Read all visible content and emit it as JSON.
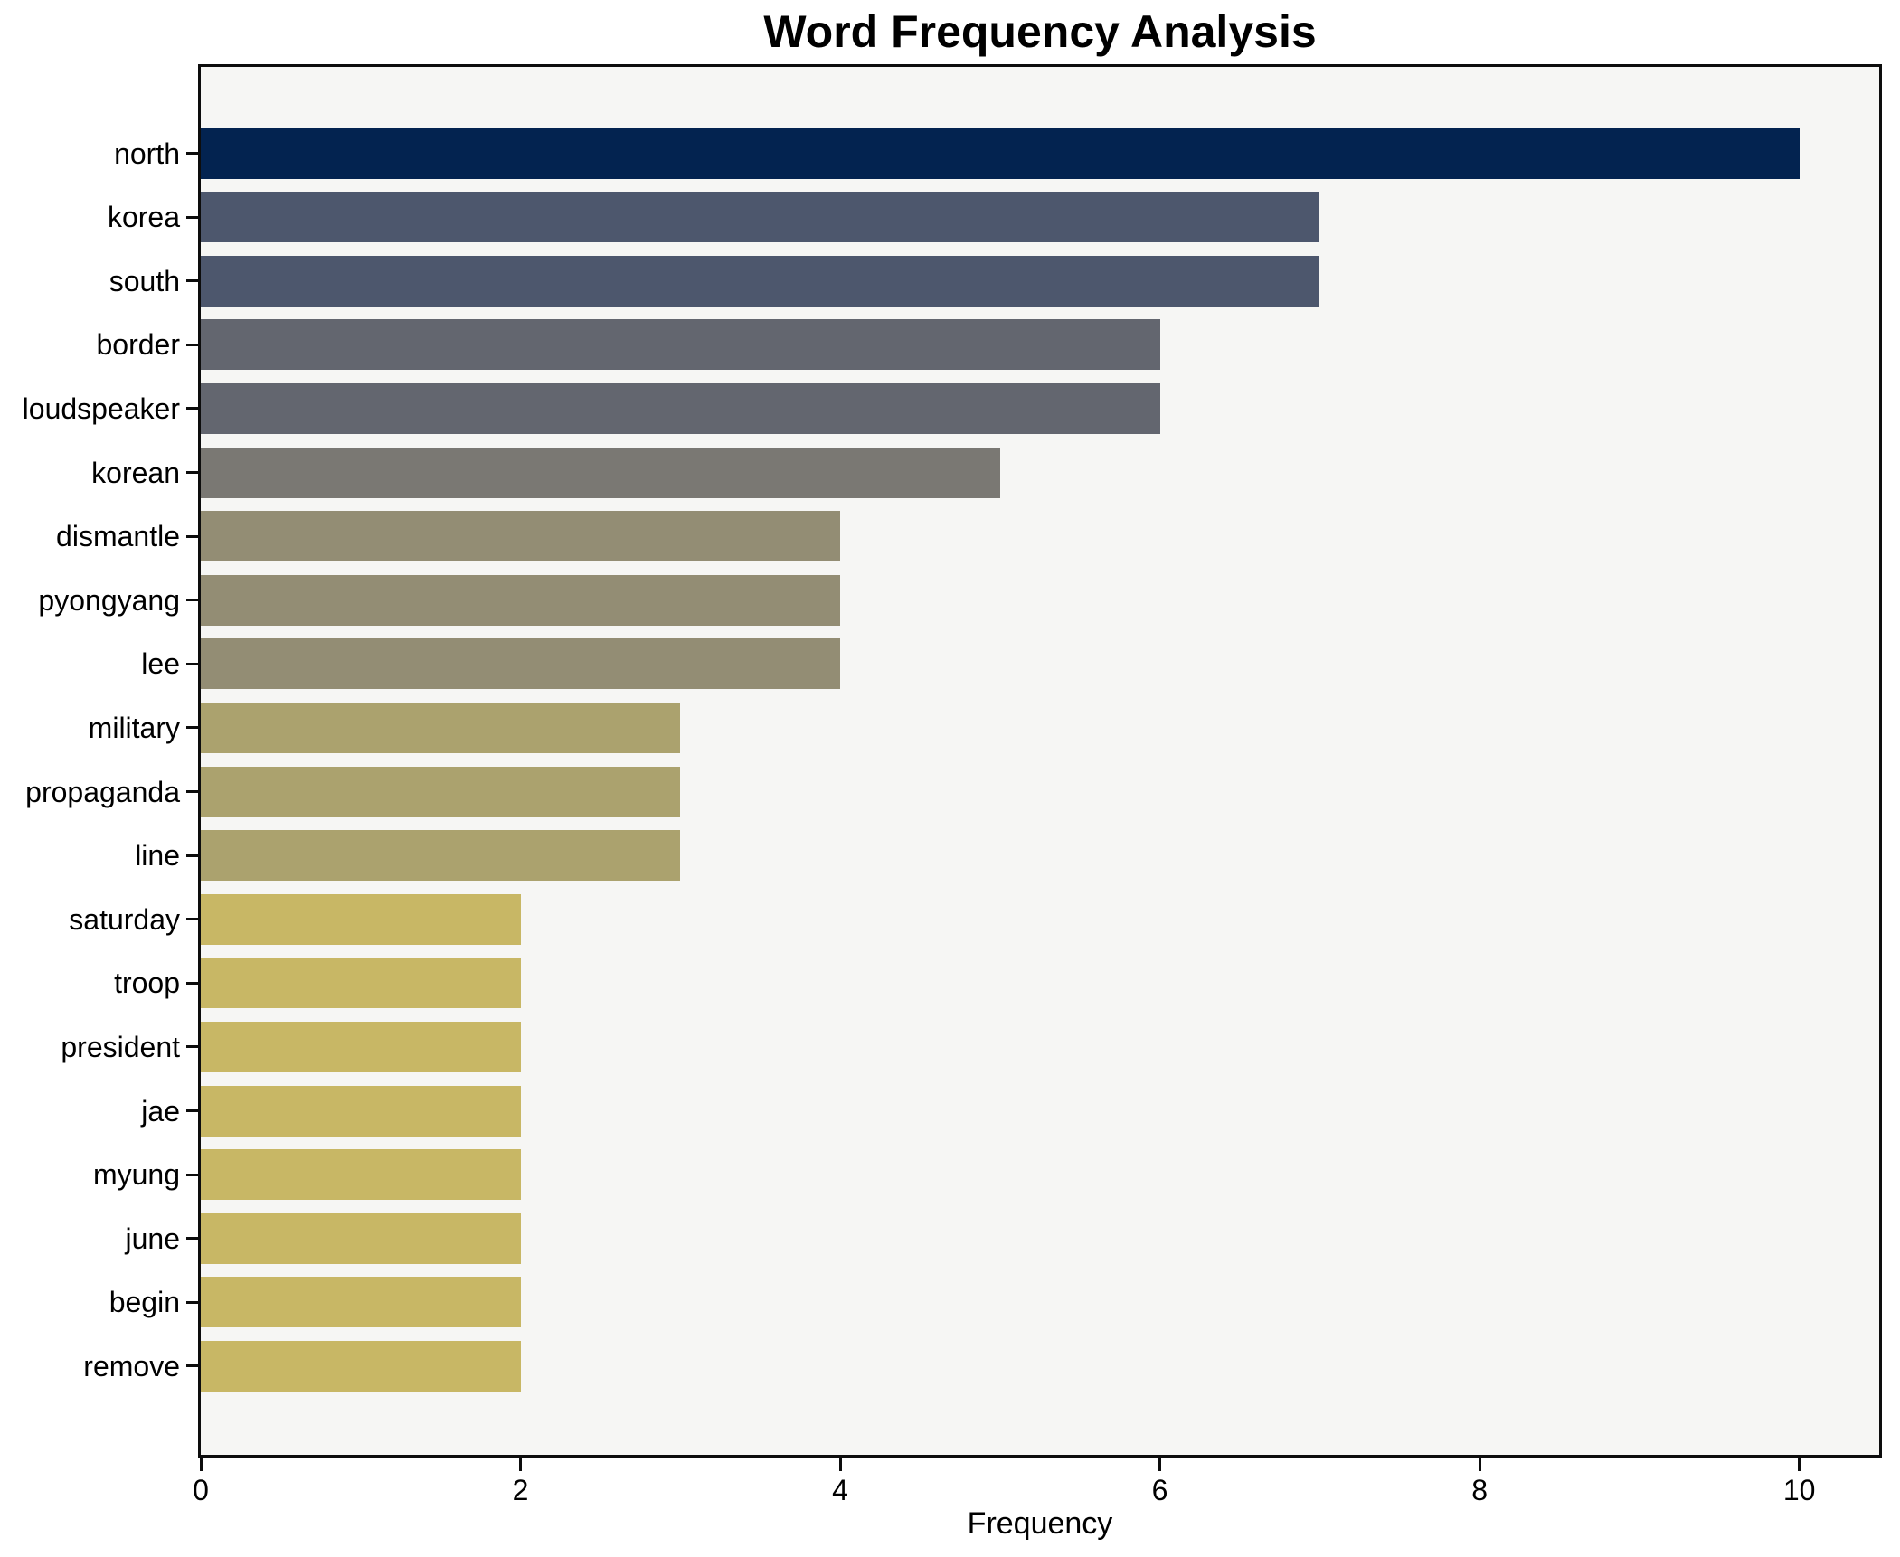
{
  "title": "Word Frequency Analysis",
  "chart_data": {
    "type": "bar",
    "orientation": "horizontal",
    "title": "Word Frequency Analysis",
    "xlabel": "Frequency",
    "ylabel": "",
    "categories": [
      "north",
      "korea",
      "south",
      "border",
      "loudspeaker",
      "korean",
      "dismantle",
      "pyongyang",
      "lee",
      "military",
      "propaganda",
      "line",
      "saturday",
      "troop",
      "president",
      "jae",
      "myung",
      "june",
      "begin",
      "remove"
    ],
    "values": [
      10,
      7,
      7,
      6,
      6,
      5,
      4,
      4,
      4,
      3,
      3,
      3,
      2,
      2,
      2,
      2,
      2,
      2,
      2,
      2
    ],
    "bar_colors": [
      "#032350",
      "#4d576d",
      "#4d576d",
      "#63666f",
      "#63666f",
      "#7a7873",
      "#938d74",
      "#938d74",
      "#938d74",
      "#aba26e",
      "#aba26e",
      "#aba26e",
      "#c8b765",
      "#c8b765",
      "#c8b765",
      "#c8b765",
      "#c8b765",
      "#c8b765",
      "#c8b765",
      "#c8b765"
    ],
    "xticks": [
      0,
      2,
      4,
      6,
      8,
      10
    ],
    "xlim": [
      0,
      10.5
    ],
    "grid": false,
    "legend": "none",
    "plot_background": "#f6f6f4",
    "figure_background": "#ffffff",
    "spine_color": "#0d0d0d",
    "text_color": "#000000"
  }
}
